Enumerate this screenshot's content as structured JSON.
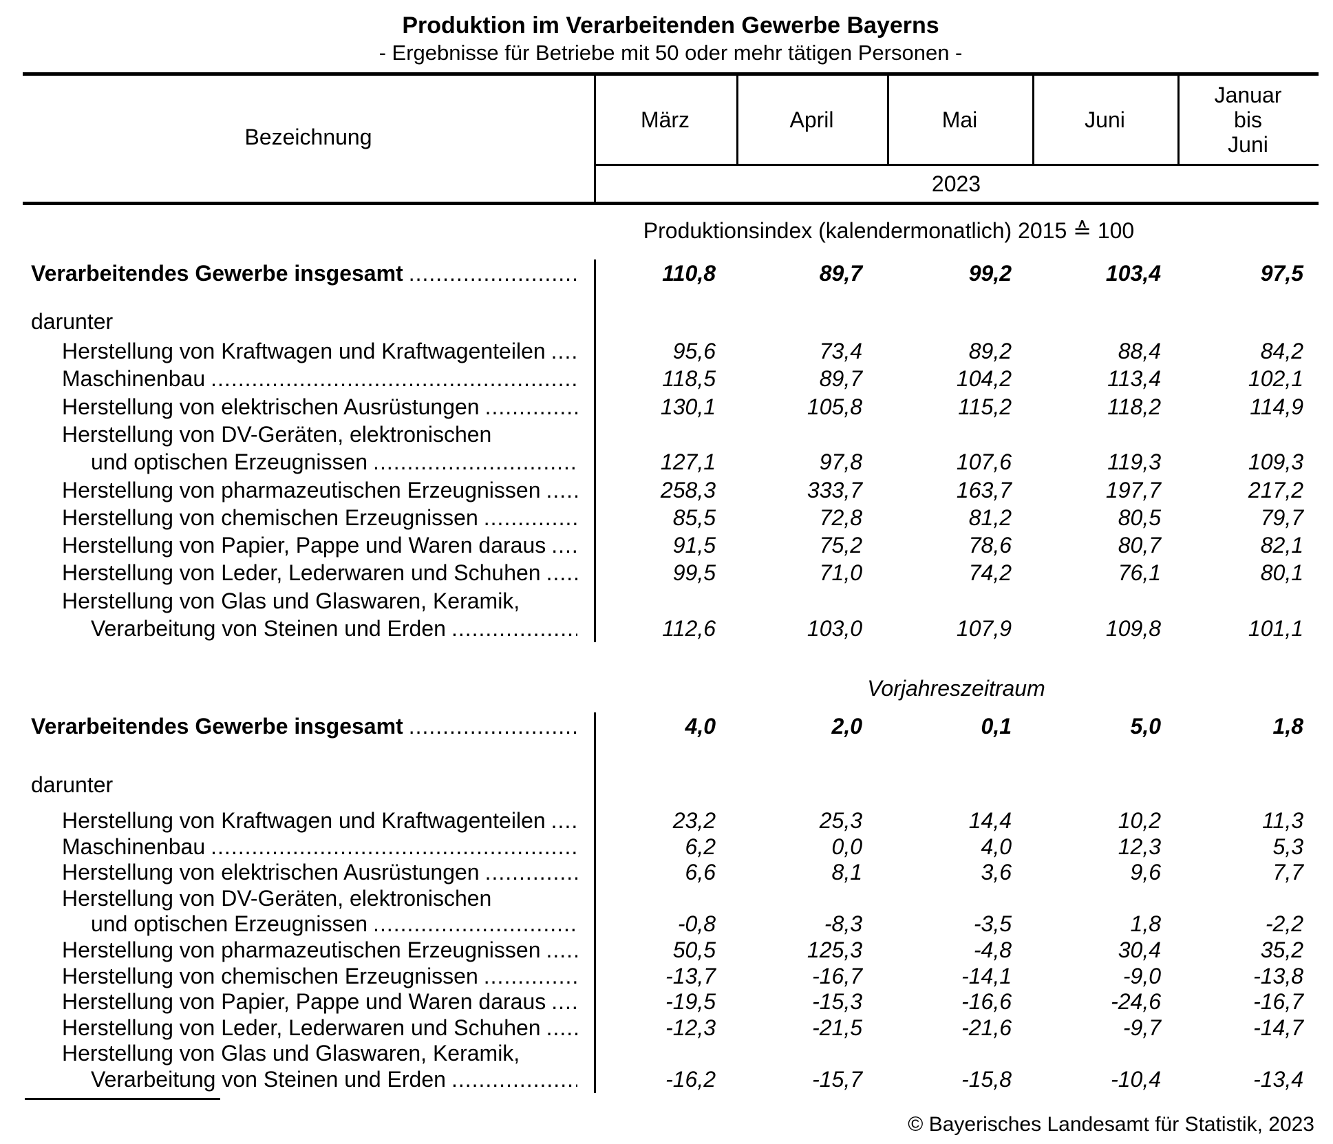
{
  "title": "Produktion im Verarbeitenden Gewerbe Bayerns",
  "subtitle": "- Ergebnisse für Betriebe mit 50 oder mehr tätigen Personen -",
  "table_header": {
    "label_column": "Bezeichnung",
    "month_columns": [
      "März",
      "April",
      "Mai",
      "Juni",
      "Januar\nbis\nJuni"
    ],
    "year": "2023"
  },
  "sections": [
    {
      "heading": "Produktionsindex (kalendermonatlich) 2015 ≙ 100",
      "total": {
        "label": "Verarbeitendes Gewerbe insgesamt",
        "values": [
          "110,8",
          "89,7",
          "99,2",
          "103,4",
          "97,5"
        ]
      },
      "group_label": "darunter",
      "rows": [
        {
          "label": "Herstellung von Kraftwagen und Kraftwagenteilen",
          "values": [
            "95,6",
            "73,4",
            "89,2",
            "88,4",
            "84,2"
          ]
        },
        {
          "label": "Maschinenbau",
          "values": [
            "118,5",
            "89,7",
            "104,2",
            "113,4",
            "102,1"
          ]
        },
        {
          "label": "Herstellung von elektrischen Ausrüstungen",
          "values": [
            "130,1",
            "105,8",
            "115,2",
            "118,2",
            "114,9"
          ]
        },
        {
          "label1": "Herstellung von DV-Geräten, elektronischen",
          "label2": "und optischen Erzeugnissen",
          "values": [
            "127,1",
            "97,8",
            "107,6",
            "119,3",
            "109,3"
          ]
        },
        {
          "label": "Herstellung von pharmazeutischen Erzeugnissen",
          "values": [
            "258,3",
            "333,7",
            "163,7",
            "197,7",
            "217,2"
          ]
        },
        {
          "label": "Herstellung von chemischen Erzeugnissen",
          "values": [
            "85,5",
            "72,8",
            "81,2",
            "80,5",
            "79,7"
          ]
        },
        {
          "label": "Herstellung von Papier, Pappe und Waren daraus",
          "values": [
            "91,5",
            "75,2",
            "78,6",
            "80,7",
            "82,1"
          ]
        },
        {
          "label": "Herstellung von Leder, Lederwaren und Schuhen",
          "values": [
            "99,5",
            "71,0",
            "74,2",
            "76,1",
            "80,1"
          ]
        },
        {
          "label1": "Herstellung von Glas und Glaswaren, Keramik,",
          "label2": "Verarbeitung von Steinen und Erden",
          "values": [
            "112,6",
            "103,0",
            "107,9",
            "109,8",
            "101,1"
          ]
        }
      ]
    },
    {
      "heading": "Vorjahreszeitraum",
      "total": {
        "label": "Verarbeitendes Gewerbe insgesamt",
        "values": [
          "4,0",
          "2,0",
          "0,1",
          "5,0",
          "1,8"
        ]
      },
      "group_label": "darunter",
      "rows": [
        {
          "label": "Herstellung von Kraftwagen und Kraftwagenteilen",
          "values": [
            "23,2",
            "25,3",
            "14,4",
            "10,2",
            "11,3"
          ]
        },
        {
          "label": "Maschinenbau",
          "values": [
            "6,2",
            "0,0",
            "4,0",
            "12,3",
            "5,3"
          ]
        },
        {
          "label": "Herstellung von elektrischen Ausrüstungen",
          "values": [
            "6,6",
            "8,1",
            "3,6",
            "9,6",
            "7,7"
          ]
        },
        {
          "label1": "Herstellung von DV-Geräten, elektronischen",
          "label2": "und optischen Erzeugnissen",
          "values": [
            "-0,8",
            "-8,3",
            "-3,5",
            "1,8",
            "-2,2"
          ]
        },
        {
          "label": "Herstellung von pharmazeutischen Erzeugnissen",
          "values": [
            "50,5",
            "125,3",
            "-4,8",
            "30,4",
            "35,2"
          ]
        },
        {
          "label": "Herstellung von chemischen Erzeugnissen",
          "values": [
            "-13,7",
            "-16,7",
            "-14,1",
            "-9,0",
            "-13,8"
          ]
        },
        {
          "label": "Herstellung von Papier, Pappe und Waren daraus",
          "values": [
            "-19,5",
            "-15,3",
            "-16,6",
            "-24,6",
            "-16,7"
          ]
        },
        {
          "label": "Herstellung von Leder, Lederwaren und Schuhen",
          "values": [
            "-12,3",
            "-21,5",
            "-21,6",
            "-9,7",
            "-14,7"
          ]
        },
        {
          "label1": "Herstellung von Glas und Glaswaren, Keramik,",
          "label2": "Verarbeitung von Steinen und Erden",
          "values": [
            "-16,2",
            "-15,7",
            "-15,8",
            "-10,4",
            "-13,4"
          ]
        }
      ]
    }
  ],
  "footer": {
    "copyright": "© Bayerisches Landesamt für Statistik, 2023"
  },
  "misc": {
    "leader_dots": "........................................................................................................................................................"
  }
}
